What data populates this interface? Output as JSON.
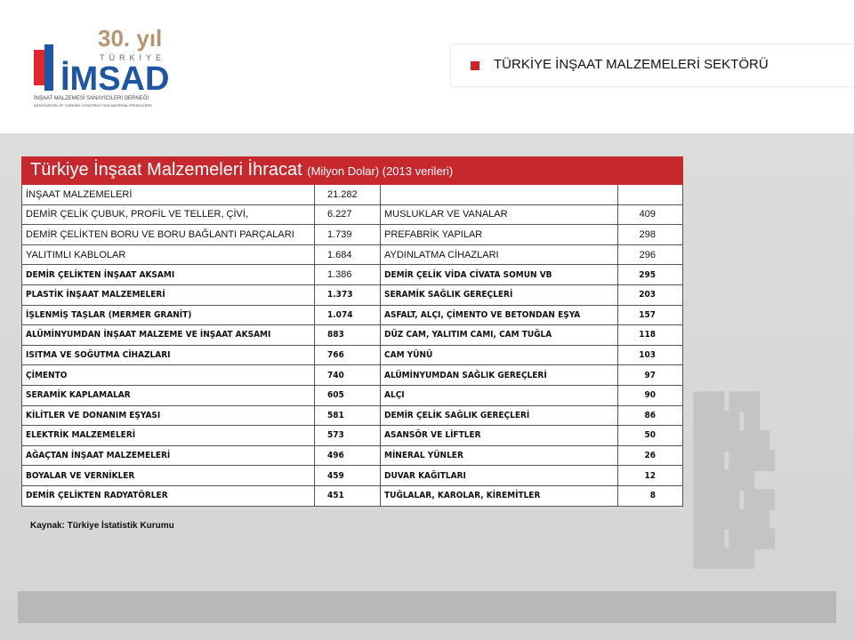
{
  "logo": {
    "anniversary": "30. yıl",
    "country": "TÜRKİYE",
    "name": "İMSAD",
    "line1": "İNŞAAT MALZEMESİ SANAYİCİLERİ DERNEĞİ",
    "line2": "ASSOCIATION OF TURKISH CONSTRUCTION MATERIAL PRODUCERS"
  },
  "header": {
    "title": "TÜRKİYE İNŞAAT MALZEMELERİ SEKTÖRÜ"
  },
  "table": {
    "title": "Türkiye İnşaat Malzemeleri İhracat",
    "subtitle": "(Milyon Dolar) (2013 verileri)",
    "rows": [
      [
        "İNŞAAT MALZEMELERİ",
        "21.282"
      ],
      [
        "DEMİR ÇELİK ÇUBUK, PROFİL VE TELLER, ÇİVİ,",
        "6.227",
        "MUSLUKLAR VE VANALAR",
        "409"
      ],
      [
        "DEMİR ÇELİKTEN BORU VE BORU BAĞLANTI PARÇALARI",
        "1.739",
        "PREFABRİK YAPILAR",
        "298"
      ],
      [
        "YALITIMLI KABLOLAR",
        "1.684",
        "AYDINLATMA CİHAZLARI",
        "296"
      ],
      [
        "DEMİR ÇELİKTEN İNŞAAT AKSAMI",
        "1.386",
        "DEMİR ÇELİK VİDA CİVATA SOMUN VB",
        "295"
      ],
      [
        "PLASTİK İNŞAAT MALZEMELERİ",
        "1.373",
        "SERAMİK SAĞLIK GEREÇLERİ",
        "203"
      ],
      [
        "İŞLENMİŞ TAŞLAR (MERMER GRANİT)",
        "1.074",
        "ASFALT, ALÇI, ÇİMENTO VE BETONDAN EŞYA",
        "157"
      ],
      [
        "ALÜMİNYUMDAN İNŞAAT MALZEME VE İNŞAAT AKSAMI",
        "883",
        "DÜZ CAM, YALITIM CAMI, CAM TUĞLA",
        "118"
      ],
      [
        "ISITMA VE SOĞUTMA CİHAZLARI",
        "766",
        "CAM YÜNÜ",
        "103"
      ],
      [
        "ÇİMENTO",
        "740",
        "ALÜMİNYUMDAN SAĞLIK GEREÇLERİ",
        "97"
      ],
      [
        "SERAMİK KAPLAMALAR",
        "605",
        "ALÇI",
        "90"
      ],
      [
        "KİLİTLER VE DONANIM EŞYASI",
        "581",
        "DEMİR ÇELİK SAĞLIK GEREÇLERİ",
        "86"
      ],
      [
        "ELEKTRİK MALZEMELERİ",
        "573",
        "ASANSÖR VE LİFTLER",
        "50"
      ],
      [
        "AĞAÇTAN İNŞAAT MALZEMELERİ",
        "496",
        "MİNERAL YÜNLER",
        "26"
      ],
      [
        "BOYALAR VE VERNİKLER",
        "459",
        "DUVAR KAĞITLARI",
        "12"
      ],
      [
        "DEMİR ÇELİKTEN RADYATÖRLER",
        "451",
        "TUĞLALAR, KAROLAR, KİREMİTLER",
        "8"
      ]
    ]
  },
  "source": "Kaynak: Türkiye İstatistik Kurumu"
}
